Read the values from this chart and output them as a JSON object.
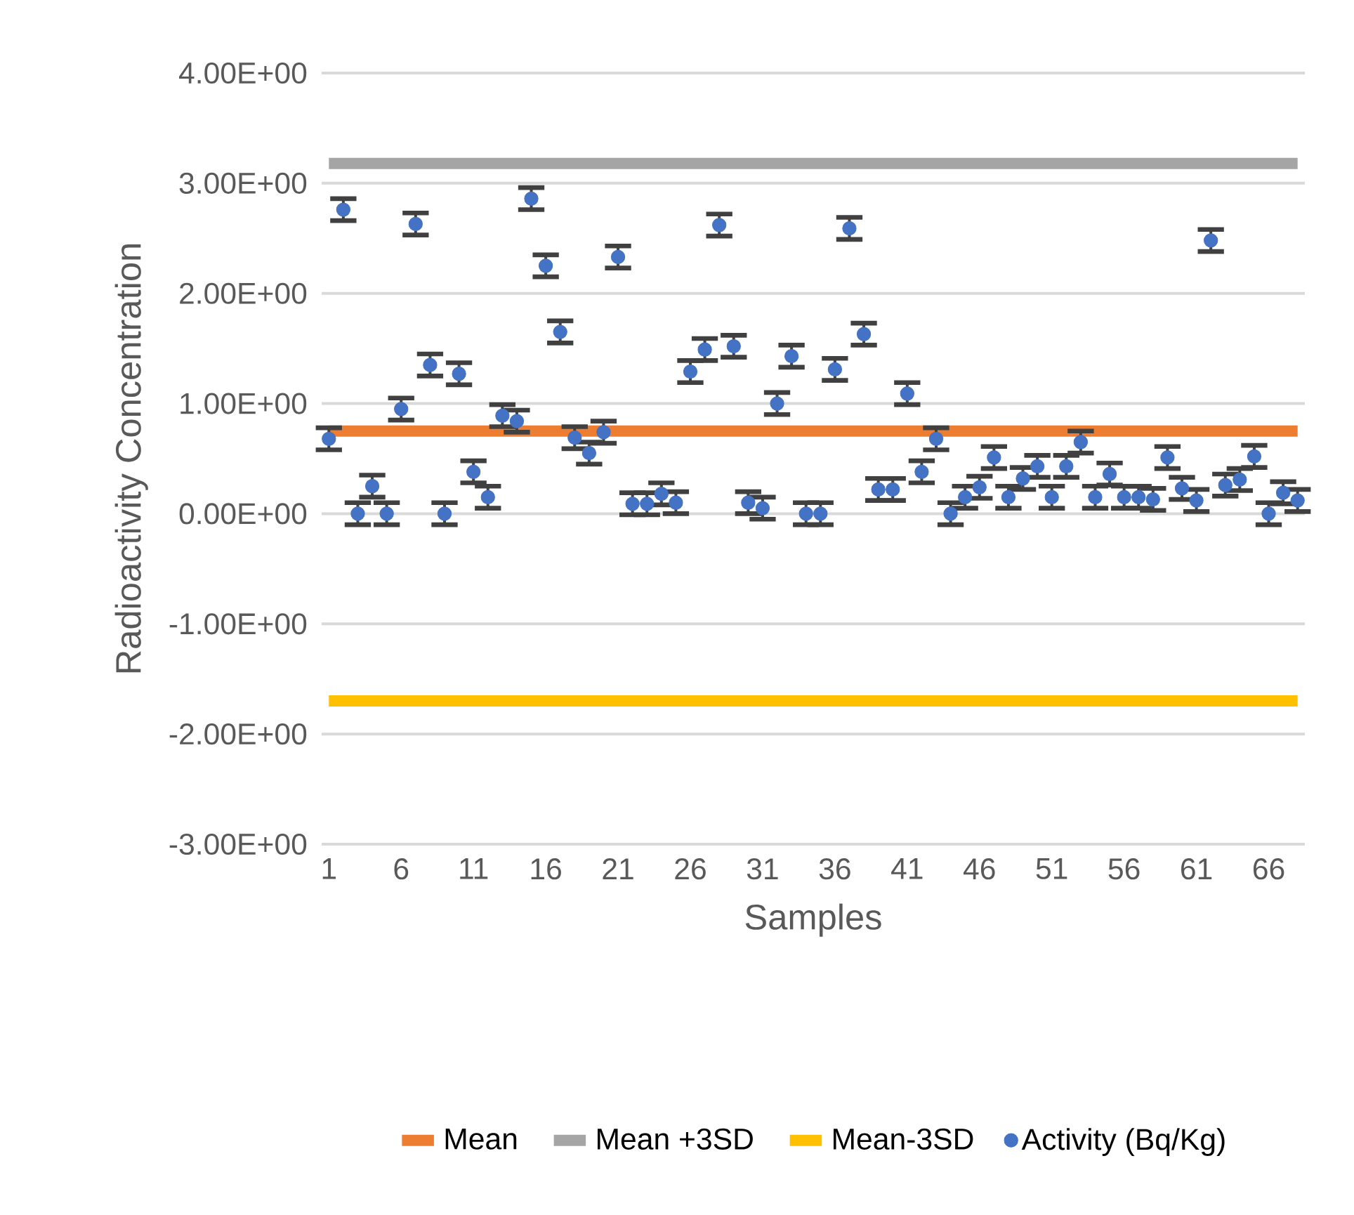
{
  "chart_data": {
    "type": "scatter",
    "ylabel": "Radioactivity Concentration",
    "xlabel": "Samples",
    "categories": [
      "1",
      null,
      null,
      null,
      null,
      "6",
      null,
      null,
      null,
      null,
      "11",
      null,
      null,
      null,
      null,
      "16",
      null,
      null,
      null,
      null,
      "21",
      null,
      null,
      null,
      null,
      "26",
      null,
      null,
      null,
      null,
      "31",
      null,
      null,
      null,
      null,
      "36",
      null,
      null,
      null,
      null,
      "41",
      null,
      null,
      null,
      null,
      "46",
      null,
      null,
      null,
      null,
      "51",
      null,
      null,
      null,
      null,
      "56",
      null,
      null,
      null,
      null,
      "61",
      null,
      null,
      null,
      null,
      "66",
      null,
      null
    ],
    "ylim": [
      -3,
      4
    ],
    "yticks": [
      {
        "value": -3,
        "label": "-3.00E+00"
      },
      {
        "value": -2,
        "label": "-2.00E+00"
      },
      {
        "value": -1,
        "label": "-1.00E+00"
      },
      {
        "value": 0,
        "label": "0.00E+00"
      },
      {
        "value": 1,
        "label": "1.00E+00"
      },
      {
        "value": 2,
        "label": "2.00E+00"
      },
      {
        "value": 3,
        "label": "3.00E+00"
      },
      {
        "value": 4,
        "label": "4.00E+00"
      }
    ],
    "grid": "y",
    "legend": "bottom",
    "series": [
      {
        "name": "Mean",
        "type": "line",
        "color": "#ed7d31",
        "marker": "none",
        "line_style": "solid",
        "values": [
          0.75,
          0.75,
          0.75,
          0.75,
          0.75,
          0.75,
          0.75,
          0.75,
          0.75,
          0.75,
          0.75,
          0.75,
          0.75,
          0.75,
          0.75,
          0.75,
          0.75,
          0.75,
          0.75,
          0.75,
          0.75,
          0.75,
          0.75,
          0.75,
          0.75,
          0.75,
          0.75,
          0.75,
          0.75,
          0.75,
          0.75,
          0.75,
          0.75,
          0.75,
          0.75,
          0.75,
          0.75,
          0.75,
          0.75,
          0.75,
          0.75,
          0.75,
          0.75,
          0.75,
          0.75,
          0.75,
          0.75,
          0.75,
          0.75,
          0.75,
          0.75,
          0.75,
          0.75,
          0.75,
          0.75,
          0.75,
          0.75,
          0.75,
          0.75,
          0.75,
          0.75,
          0.75,
          0.75,
          0.75,
          0.75,
          0.75,
          0.75,
          0.75
        ]
      },
      {
        "name": "Mean +3SD",
        "type": "line",
        "color": "#a5a5a5",
        "marker": "none",
        "line_style": "solid",
        "values": [
          3.18,
          3.18,
          3.18,
          3.18,
          3.18,
          3.18,
          3.18,
          3.18,
          3.18,
          3.18,
          3.18,
          3.18,
          3.18,
          3.18,
          3.18,
          3.18,
          3.18,
          3.18,
          3.18,
          3.18,
          3.18,
          3.18,
          3.18,
          3.18,
          3.18,
          3.18,
          3.18,
          3.18,
          3.18,
          3.18,
          3.18,
          3.18,
          3.18,
          3.18,
          3.18,
          3.18,
          3.18,
          3.18,
          3.18,
          3.18,
          3.18,
          3.18,
          3.18,
          3.18,
          3.18,
          3.18,
          3.18,
          3.18,
          3.18,
          3.18,
          3.18,
          3.18,
          3.18,
          3.18,
          3.18,
          3.18,
          3.18,
          3.18,
          3.18,
          3.18,
          3.18,
          3.18,
          3.18,
          3.18,
          3.18,
          3.18,
          3.18,
          3.18
        ]
      },
      {
        "name": "Mean-3SD",
        "type": "line",
        "color": "#ffc000",
        "marker": "none",
        "line_style": "solid",
        "values": [
          -1.7,
          -1.7,
          -1.7,
          -1.7,
          -1.7,
          -1.7,
          -1.7,
          -1.7,
          -1.7,
          -1.7,
          -1.7,
          -1.7,
          -1.7,
          -1.7,
          -1.7,
          -1.7,
          -1.7,
          -1.7,
          -1.7,
          -1.7,
          -1.7,
          -1.7,
          -1.7,
          -1.7,
          -1.7,
          -1.7,
          -1.7,
          -1.7,
          -1.7,
          -1.7,
          -1.7,
          -1.7,
          -1.7,
          -1.7,
          -1.7,
          -1.7,
          -1.7,
          -1.7,
          -1.7,
          -1.7,
          -1.7,
          -1.7,
          -1.7,
          -1.7,
          -1.7,
          -1.7,
          -1.7,
          -1.7,
          -1.7,
          -1.7,
          -1.7,
          -1.7,
          -1.7,
          -1.7,
          -1.7,
          -1.7,
          -1.7,
          -1.7,
          -1.7,
          -1.7,
          -1.7,
          -1.7,
          -1.7,
          -1.7,
          -1.7,
          -1.7,
          -1.7,
          -1.7
        ]
      },
      {
        "name": "Activity (Bq/Kg)",
        "type": "scatter",
        "color": "#4472c4",
        "marker": "circle",
        "values": [
          0.68,
          2.76,
          0.0,
          0.25,
          0.0,
          0.95,
          2.63,
          1.35,
          0.0,
          1.27,
          0.38,
          0.15,
          0.89,
          0.84,
          2.86,
          2.25,
          1.65,
          0.69,
          0.55,
          0.74,
          2.33,
          0.09,
          0.09,
          0.18,
          0.1,
          1.29,
          1.49,
          2.62,
          1.52,
          0.1,
          0.05,
          1.0,
          1.43,
          0.0,
          0.0,
          1.31,
          2.59,
          1.63,
          0.22,
          0.22,
          1.09,
          0.38,
          0.68,
          0.0,
          0.15,
          0.24,
          0.51,
          0.15,
          0.32,
          0.43,
          0.15,
          0.43,
          0.65,
          0.15,
          0.36,
          0.15,
          0.15,
          0.13,
          0.51,
          0.23,
          0.12,
          2.48,
          0.26,
          0.31,
          0.52,
          0.0,
          0.19,
          0.12
        ],
        "errors": [
          0.1,
          0.1,
          0.1,
          0.1,
          0.1,
          0.1,
          0.1,
          0.1,
          0.1,
          0.1,
          0.1,
          0.1,
          0.1,
          0.1,
          0.1,
          0.1,
          0.1,
          0.1,
          0.1,
          0.1,
          0.1,
          0.1,
          0.1,
          0.1,
          0.1,
          0.1,
          0.1,
          0.1,
          0.1,
          0.1,
          0.1,
          0.1,
          0.1,
          0.1,
          0.1,
          0.1,
          0.1,
          0.1,
          0.1,
          0.1,
          0.1,
          0.1,
          0.1,
          0.1,
          0.1,
          0.1,
          0.1,
          0.1,
          0.1,
          0.1,
          0.1,
          0.1,
          0.1,
          0.1,
          0.1,
          0.1,
          0.1,
          0.1,
          0.1,
          0.1,
          0.1,
          0.1,
          0.1,
          0.1,
          0.1,
          0.1,
          0.1,
          0.1
        ]
      }
    ]
  }
}
